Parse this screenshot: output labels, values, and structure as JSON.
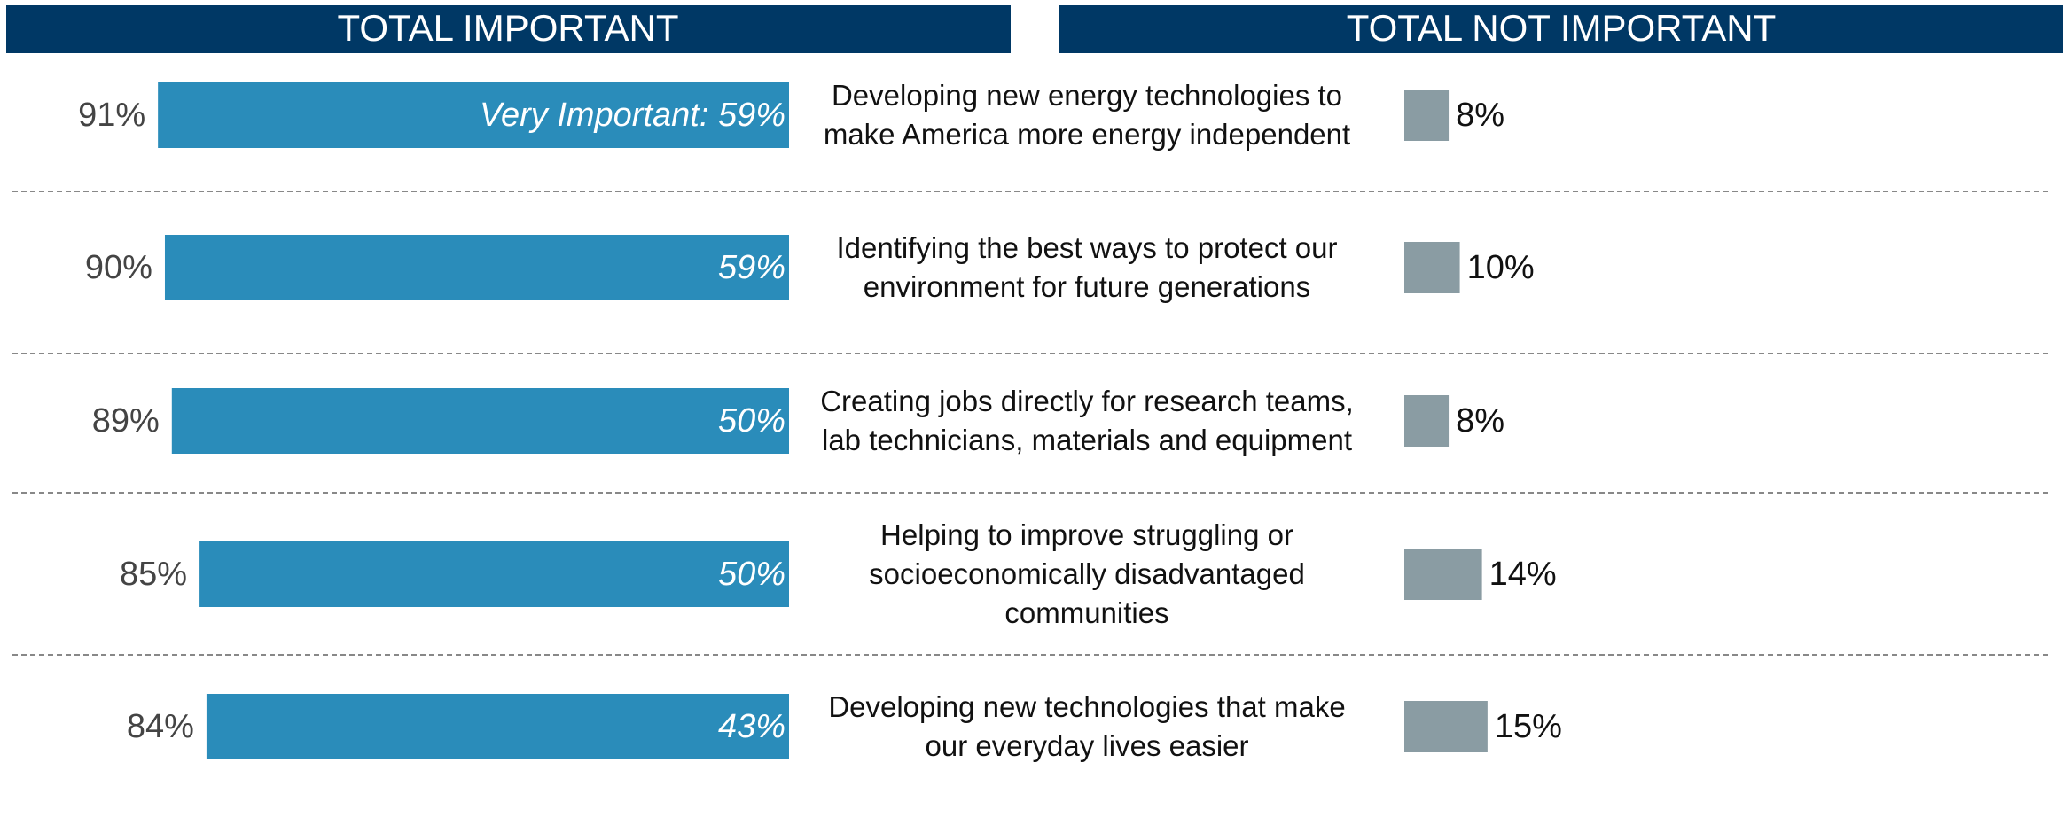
{
  "chart_data": {
    "type": "bar",
    "categories": [
      "Developing new energy technologies to make America more energy independent",
      "Identifying the best ways to protect our environment for future generations",
      "Creating jobs directly for research teams, lab technicians, materials and equipment",
      "Helping to improve struggling or socioeconomically disadvantaged communities",
      "Developing new technologies that make our everyday lives easier"
    ],
    "series": [
      {
        "name": "TOTAL IMPORTANT",
        "color": "#2a8cba",
        "values": [
          91,
          90,
          89,
          85,
          84
        ],
        "value_labels": [
          "91%",
          "90%",
          "89%",
          "85%",
          "84%"
        ]
      },
      {
        "values": [
          59,
          59,
          50,
          50,
          43
        ],
        "value_labels": [
          "Very Important: 59%",
          "59%",
          "50%",
          "50%",
          "43%"
        ]
      },
      {
        "name": "TOTAL NOT IMPORTANT",
        "color": "#8a9ca3",
        "values": [
          8,
          10,
          8,
          14,
          15
        ],
        "value_labels": [
          "8%",
          "10%",
          "8%",
          "14%",
          "15%"
        ]
      }
    ],
    "header_color": "#003865"
  }
}
